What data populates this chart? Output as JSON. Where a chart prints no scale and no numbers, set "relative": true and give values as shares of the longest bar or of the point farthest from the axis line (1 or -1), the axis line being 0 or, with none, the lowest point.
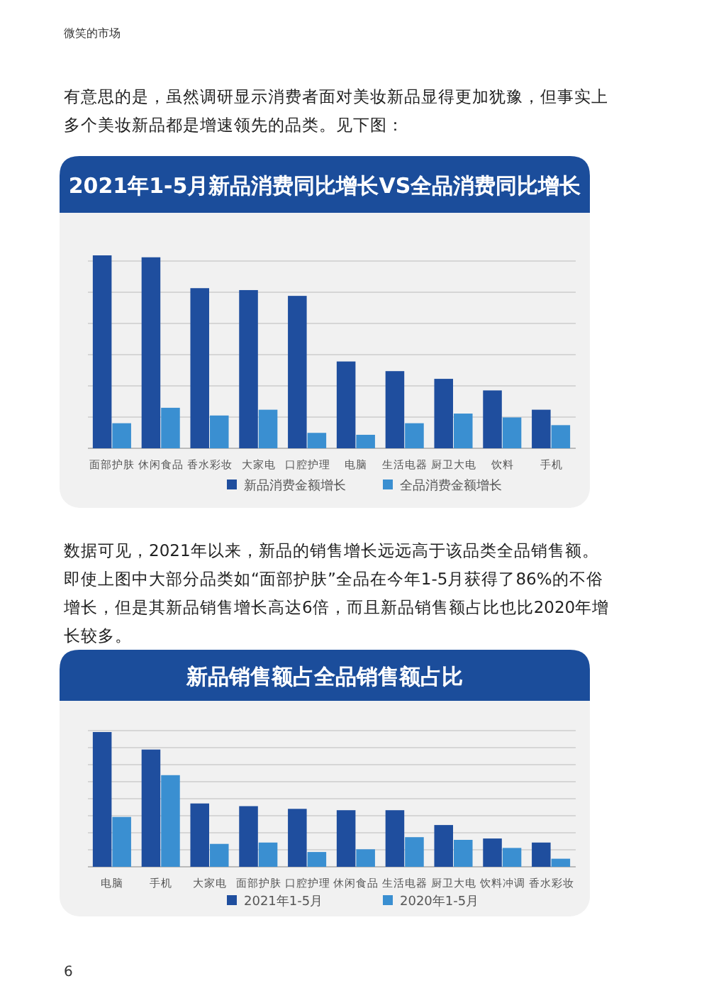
{
  "chart_data": [
    {
      "type": "bar",
      "title": "2021年1-5月新品消费同比增长VS全品消费同比增长",
      "relative": true,
      "grid": "y",
      "legend": "bottom",
      "annotations": [
        "微笑的市场",
        "有意思的是，虽然调研显示消费者面对美妆新品显得更加犹豫，但事实上多个美妆新品都是增速领先的品类。见下图："
      ],
      "categories": [
        "面部护肤",
        "休闲食品",
        "香水彩妆",
        "大家电",
        "口腔护理",
        "电脑",
        "生活电器",
        "厨卫大电",
        "饮料",
        "手机"
      ],
      "series": [
        {
          "name": "新品消费金额增长",
          "color": "#1f4e9e",
          "values": [
            1,
            0.99,
            0.83,
            0.82,
            0.79,
            0.45,
            0.4,
            0.36,
            0.3,
            0.2
          ]
        },
        {
          "name": "全品消费金额增长",
          "color": "#3a8fd1",
          "values": [
            0.13,
            0.21,
            0.17,
            0.2,
            0.08,
            0.07,
            0.13,
            0.18,
            0.16,
            0.12
          ]
        }
      ]
    },
    {
      "type": "bar",
      "title": "新品销售额占全品销售额占比",
      "relative": true,
      "grid": "y",
      "legend": "bottom",
      "annotations": [
        "数据可见，2021年以来，新品的销售增长远远高于该品类全品销售额。即使上图中大部分品类如“面部护肤”全品在今年1-5月获得了86%的不俗增长，但是其新品销售增长高达6倍，而且新品销售额占比也比2020年增长较多。",
        "6"
      ],
      "categories": [
        "电脑",
        "手机",
        "大家电",
        "面部护肤",
        "口腔护理",
        "休闲食品",
        "生活电器",
        "厨卫大电",
        "饮料冲调",
        "香水彩妆"
      ],
      "series": [
        {
          "name": "2021年1-5月",
          "color": "#1f4e9e",
          "values": [
            1,
            0.87,
            0.47,
            0.45,
            0.43,
            0.42,
            0.42,
            0.31,
            0.21,
            0.18
          ]
        },
        {
          "name": "2020年1-5月",
          "color": "#3a8fd1",
          "values": [
            0.37,
            0.68,
            0.17,
            0.18,
            0.11,
            0.13,
            0.22,
            0.2,
            0.14,
            0.06
          ]
        }
      ]
    }
  ]
}
